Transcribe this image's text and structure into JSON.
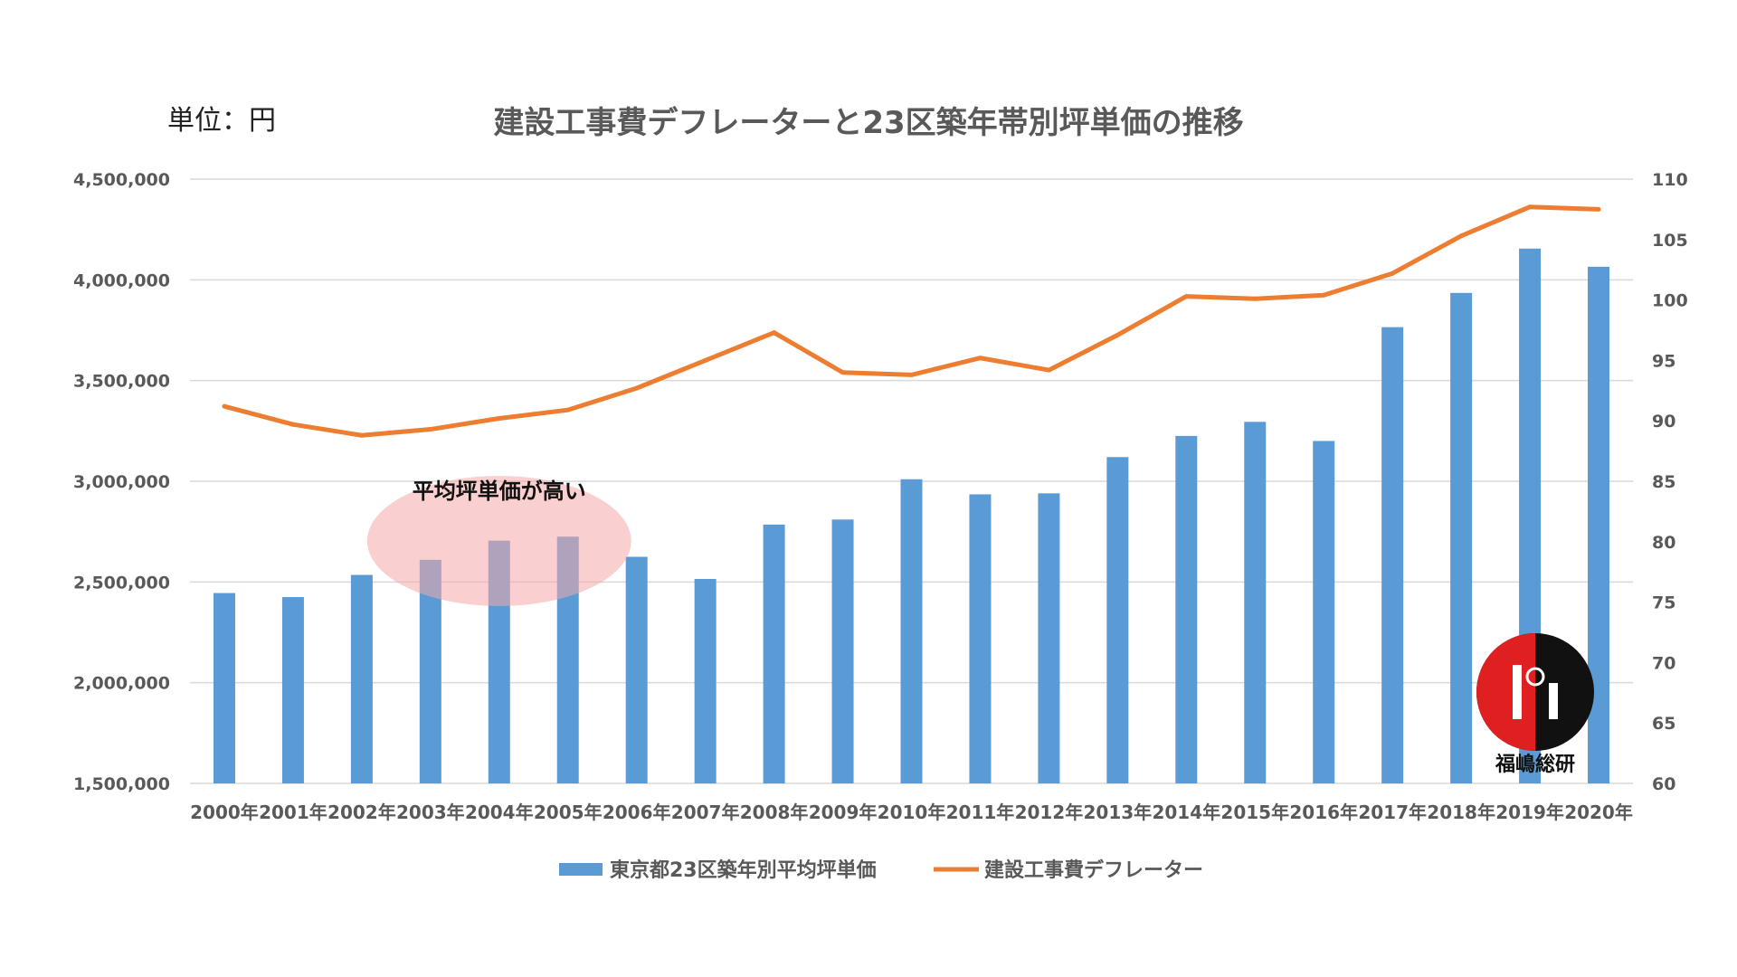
{
  "chart_data": {
    "type": "bar+line",
    "title": "建設工事費デフレーターと23区築年帯別坪単価の推移",
    "unit_label": "単位：円",
    "categories": [
      "2000年",
      "2001年",
      "2002年",
      "2003年",
      "2004年",
      "2005年",
      "2006年",
      "2007年",
      "2008年",
      "2009年",
      "2010年",
      "2011年",
      "2012年",
      "2013年",
      "2014年",
      "2015年",
      "2016年",
      "2017年",
      "2018年",
      "2019年",
      "2020年"
    ],
    "series": [
      {
        "name": "東京都23区築年別平均坪単価",
        "type": "bar",
        "axis": "left",
        "color": "#5b9bd5",
        "values": [
          2445000,
          2425000,
          2535000,
          2610000,
          2705000,
          2725000,
          2625000,
          2515000,
          2785000,
          2810000,
          3010000,
          2935000,
          2940000,
          3120000,
          3225000,
          3295000,
          3200000,
          3765000,
          3935000,
          4155000,
          4065000
        ]
      },
      {
        "name": "建設工事費デフレーター",
        "type": "line",
        "axis": "right",
        "color": "#ed7d31",
        "values": [
          91.2,
          89.7,
          88.8,
          89.3,
          90.2,
          90.9,
          92.7,
          95.0,
          97.3,
          94.0,
          93.8,
          95.2,
          94.2,
          97.1,
          100.3,
          100.1,
          100.4,
          102.2,
          105.3,
          107.7,
          107.5
        ]
      }
    ],
    "left_axis": {
      "min": 1500000,
      "max": 4500000,
      "ticks": [
        "1,500,000",
        "2,000,000",
        "2,500,000",
        "3,000,000",
        "3,500,000",
        "4,000,000",
        "4,500,000"
      ]
    },
    "right_axis": {
      "min": 60,
      "max": 110,
      "ticks": [
        "60",
        "65",
        "70",
        "75",
        "80",
        "85",
        "90",
        "95",
        "100",
        "105",
        "110"
      ]
    },
    "grid": true,
    "legend_position": "bottom",
    "annotation": {
      "text": "平均坪単価が高い",
      "highlight_from": "2003年",
      "highlight_to": "2005年",
      "color": "#f4a7a7"
    }
  },
  "logo": {
    "text": "福嶋総研"
  }
}
